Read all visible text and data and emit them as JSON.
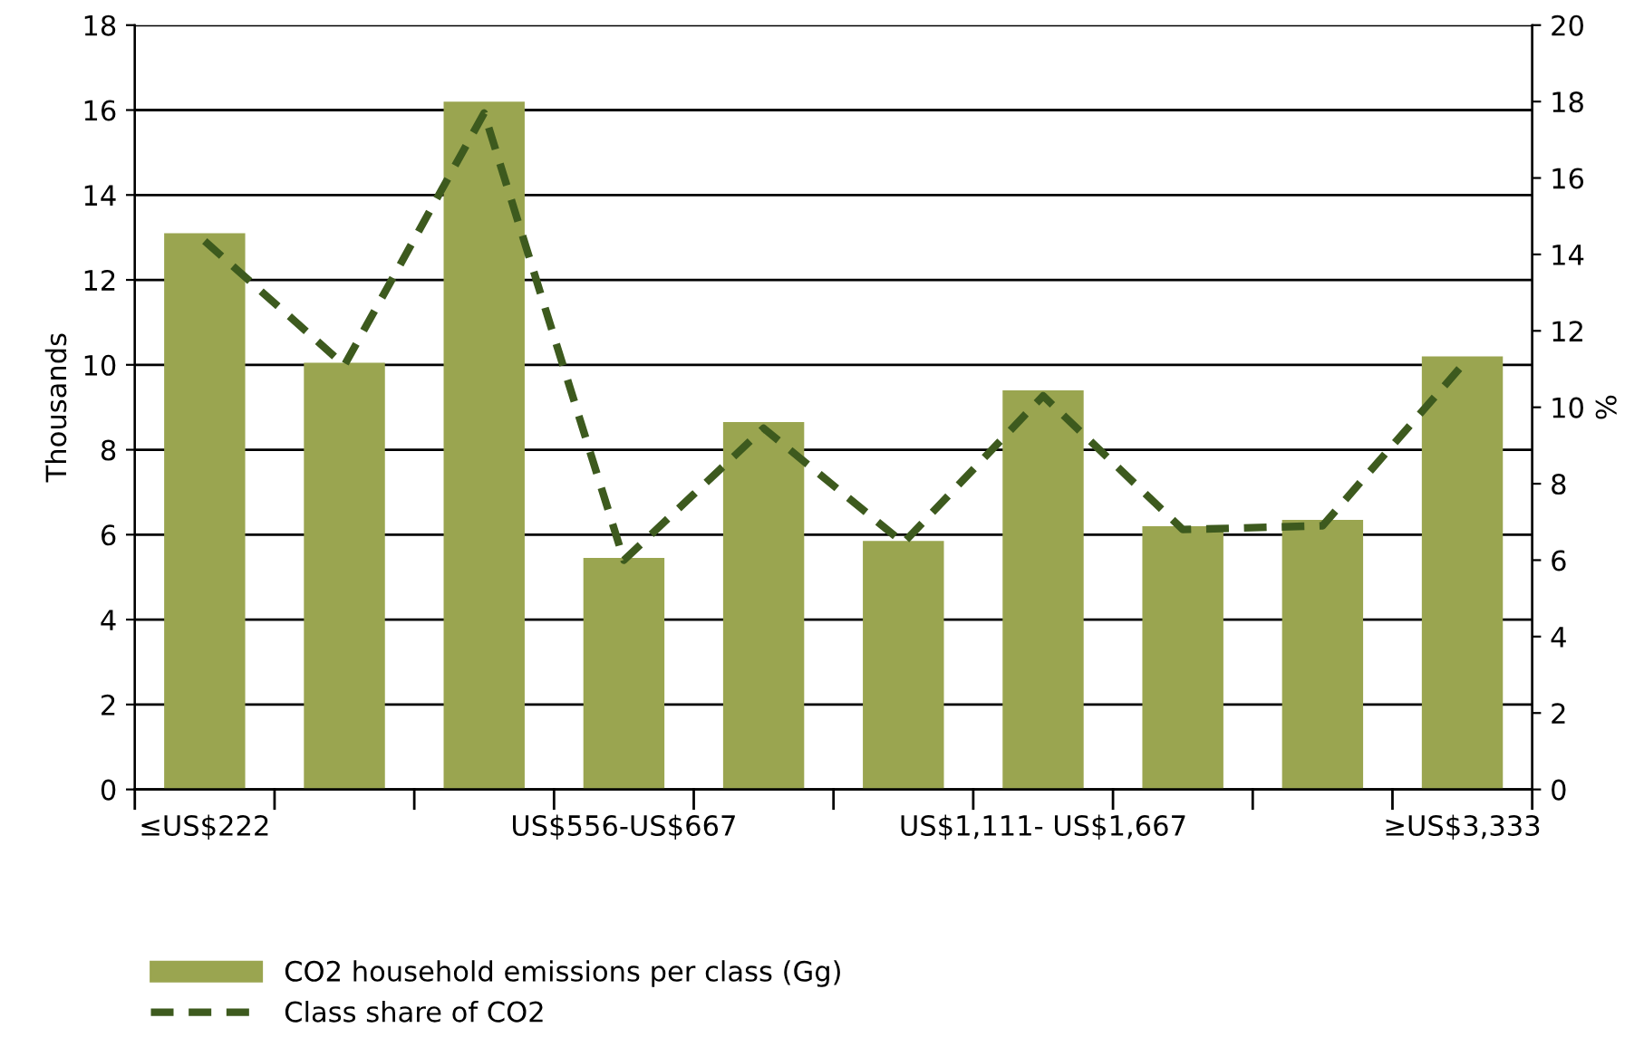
{
  "chart_data": {
    "type": "bar",
    "categories": [
      "≤US$222",
      null,
      null,
      "US$556-US$667",
      null,
      null,
      "US$1,111- US$1,667",
      null,
      null,
      "≥US$3,333"
    ],
    "series": [
      {
        "name": "CO2 household emissions per class (Gg)",
        "color": "#9aa550",
        "values": [
          13.1,
          10.05,
          16.2,
          5.45,
          8.65,
          5.85,
          9.4,
          6.2,
          6.35,
          10.2
        ]
      },
      {
        "name": "Class share of CO2",
        "type": "line",
        "axis": "y2",
        "color": "#3d5a1e",
        "line_style": "dashed",
        "marker": "none",
        "values": [
          14.35,
          11.1,
          17.7,
          6.0,
          9.45,
          6.45,
          10.3,
          6.8,
          6.9,
          11.1
        ]
      }
    ],
    "ylabel": "Thousands",
    "y2label": "%",
    "ylim": [
      0,
      18
    ],
    "yticks": [
      0,
      2,
      4,
      6,
      8,
      10,
      12,
      14,
      16,
      18
    ],
    "y2lim": [
      0,
      20
    ],
    "y2ticks": [
      0,
      2,
      4,
      6,
      8,
      10,
      12,
      14,
      16,
      18,
      20
    ],
    "grid": "y",
    "legend": "bottom"
  }
}
